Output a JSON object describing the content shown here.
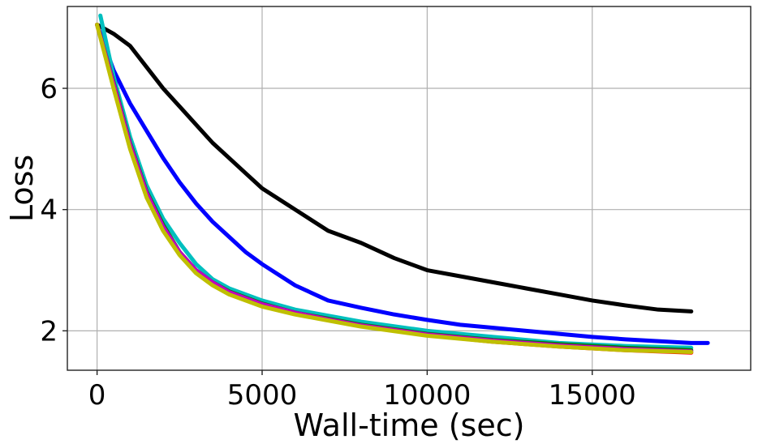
{
  "chart_data": {
    "type": "line",
    "title": "",
    "xlabel": "Wall-time (sec)",
    "ylabel": "Loss",
    "xlim": [
      -900,
      19800
    ],
    "ylim": [
      1.35,
      7.35
    ],
    "xticks": [
      0,
      5000,
      10000,
      15000
    ],
    "xtick_labels": [
      "0",
      "5000",
      "10000",
      "15000"
    ],
    "yticks": [
      2,
      4,
      6
    ],
    "ytick_labels": [
      "2",
      "4",
      "6"
    ],
    "grid": true,
    "legend": "none",
    "series": [
      {
        "color": "#000000",
        "x": [
          0,
          500,
          1000,
          1500,
          2000,
          2500,
          3000,
          3500,
          4000,
          4500,
          5000,
          6000,
          7000,
          8000,
          9000,
          10000,
          11000,
          12000,
          13000,
          14000,
          15000,
          16000,
          17000,
          18000
        ],
        "y": [
          7.05,
          6.9,
          6.7,
          6.35,
          6.0,
          5.7,
          5.4,
          5.1,
          4.85,
          4.6,
          4.35,
          4.0,
          3.65,
          3.45,
          3.2,
          3.0,
          2.9,
          2.8,
          2.7,
          2.6,
          2.5,
          2.42,
          2.35,
          2.32
        ]
      },
      {
        "color": "#0000ff",
        "x": [
          0,
          500,
          1000,
          1500,
          2000,
          2500,
          3000,
          3500,
          4000,
          4500,
          5000,
          6000,
          7000,
          8000,
          9000,
          10000,
          11000,
          12000,
          13000,
          14000,
          15000,
          16000,
          17000,
          18000,
          18500
        ],
        "y": [
          7.05,
          6.3,
          5.75,
          5.3,
          4.85,
          4.45,
          4.1,
          3.8,
          3.55,
          3.3,
          3.1,
          2.75,
          2.5,
          2.38,
          2.27,
          2.18,
          2.1,
          2.05,
          2.0,
          1.95,
          1.9,
          1.86,
          1.83,
          1.8,
          1.8
        ]
      },
      {
        "color": "#00bfbf",
        "x": [
          100,
          500,
          1000,
          1500,
          2000,
          2500,
          3000,
          3500,
          4000,
          5000,
          6000,
          7000,
          8000,
          10000,
          12000,
          14000,
          16000,
          18000
        ],
        "y": [
          7.2,
          6.2,
          5.2,
          4.4,
          3.85,
          3.45,
          3.1,
          2.85,
          2.7,
          2.5,
          2.35,
          2.25,
          2.15,
          2.0,
          1.9,
          1.8,
          1.75,
          1.72
        ]
      },
      {
        "color": "#008000",
        "x": [
          0,
          500,
          1000,
          1500,
          2000,
          2500,
          3000,
          3500,
          4000,
          5000,
          6000,
          7000,
          8000,
          10000,
          12000,
          14000,
          16000,
          18000
        ],
        "y": [
          7.05,
          6.1,
          5.1,
          4.3,
          3.75,
          3.3,
          3.0,
          2.8,
          2.65,
          2.45,
          2.3,
          2.2,
          2.1,
          1.95,
          1.85,
          1.78,
          1.72,
          1.68
        ]
      },
      {
        "color": "#ff0000",
        "x": [
          0,
          500,
          1000,
          1500,
          2000,
          2500,
          3000,
          3500,
          4000,
          5000,
          6000,
          7000,
          8000,
          10000,
          12000,
          14000,
          16000,
          18000
        ],
        "y": [
          7.05,
          6.05,
          5.05,
          4.25,
          3.7,
          3.28,
          2.98,
          2.78,
          2.62,
          2.42,
          2.28,
          2.18,
          2.08,
          1.93,
          1.82,
          1.74,
          1.68,
          1.64
        ]
      },
      {
        "color": "#bf00bf",
        "x": [
          0,
          500,
          1000,
          1500,
          2000,
          2500,
          3000,
          3500,
          4000,
          5000,
          6000,
          7000,
          8000,
          10000,
          12000,
          14000,
          16000,
          18000
        ],
        "y": [
          7.05,
          6.08,
          5.08,
          4.28,
          3.72,
          3.3,
          3.0,
          2.8,
          2.64,
          2.44,
          2.3,
          2.19,
          2.09,
          1.94,
          1.84,
          1.76,
          1.7,
          1.66
        ]
      },
      {
        "color": "#bfbf00",
        "x": [
          0,
          500,
          1000,
          1500,
          2000,
          2500,
          3000,
          3500,
          4000,
          5000,
          6000,
          7000,
          8000,
          10000,
          12000,
          14000,
          16000,
          18000
        ],
        "y": [
          7.05,
          6.0,
          5.0,
          4.2,
          3.65,
          3.25,
          2.95,
          2.75,
          2.6,
          2.4,
          2.27,
          2.17,
          2.07,
          1.92,
          1.82,
          1.74,
          1.68,
          1.65
        ]
      }
    ]
  }
}
